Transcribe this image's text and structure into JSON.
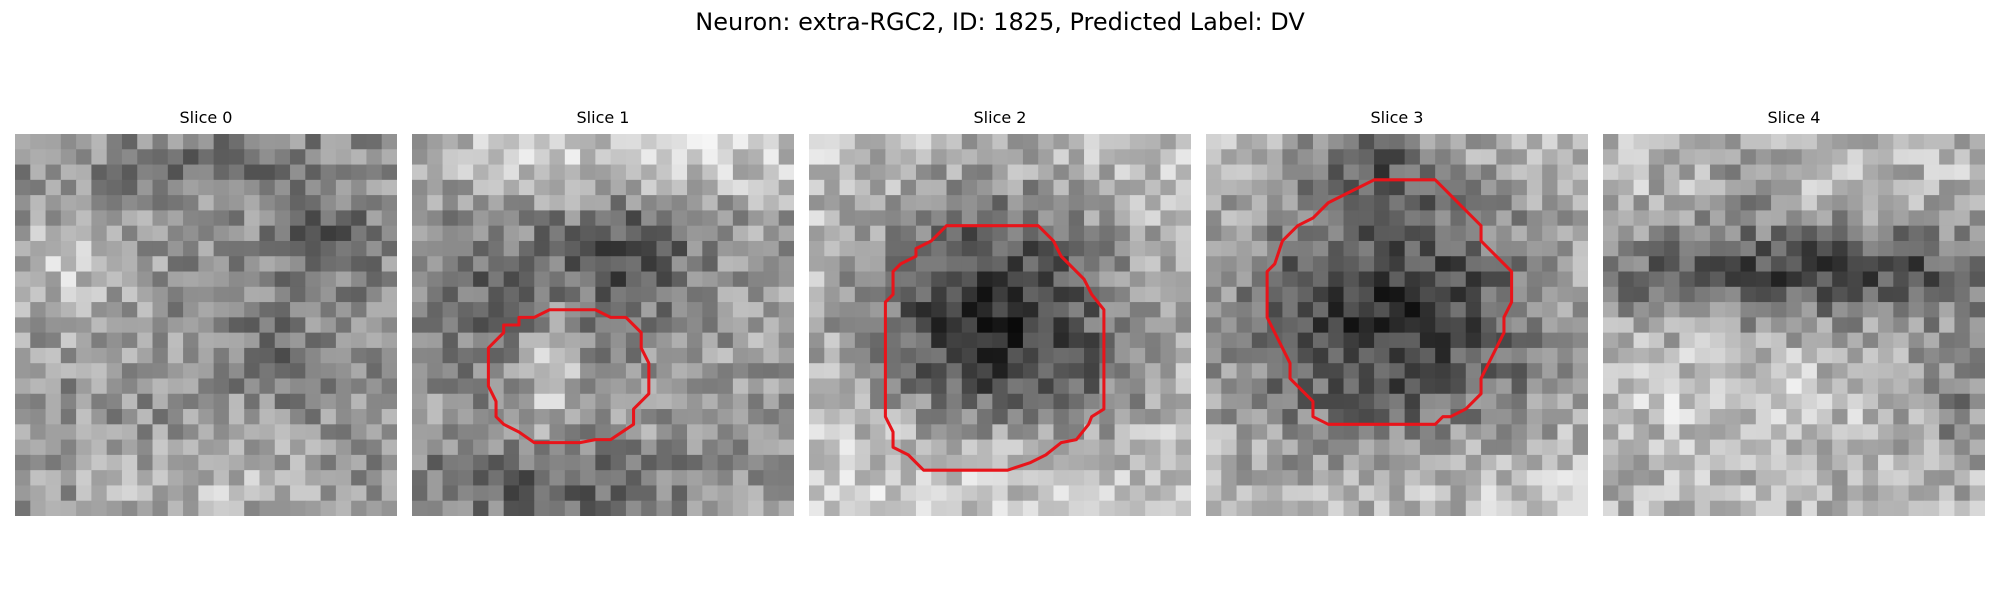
{
  "figure": {
    "title": "Neuron: extra-RGC2, ID: 1825, Predicted Label: DV"
  },
  "panels": [
    {
      "title": "Slice 0",
      "has_outline": false
    },
    {
      "title": "Slice 1",
      "has_outline": true
    },
    {
      "title": "Slice 2",
      "has_outline": true
    },
    {
      "title": "Slice 3",
      "has_outline": true
    },
    {
      "title": "Slice 4",
      "has_outline": false
    }
  ],
  "colors": {
    "outline": "#e8141a",
    "colormap": "grayscale"
  }
}
